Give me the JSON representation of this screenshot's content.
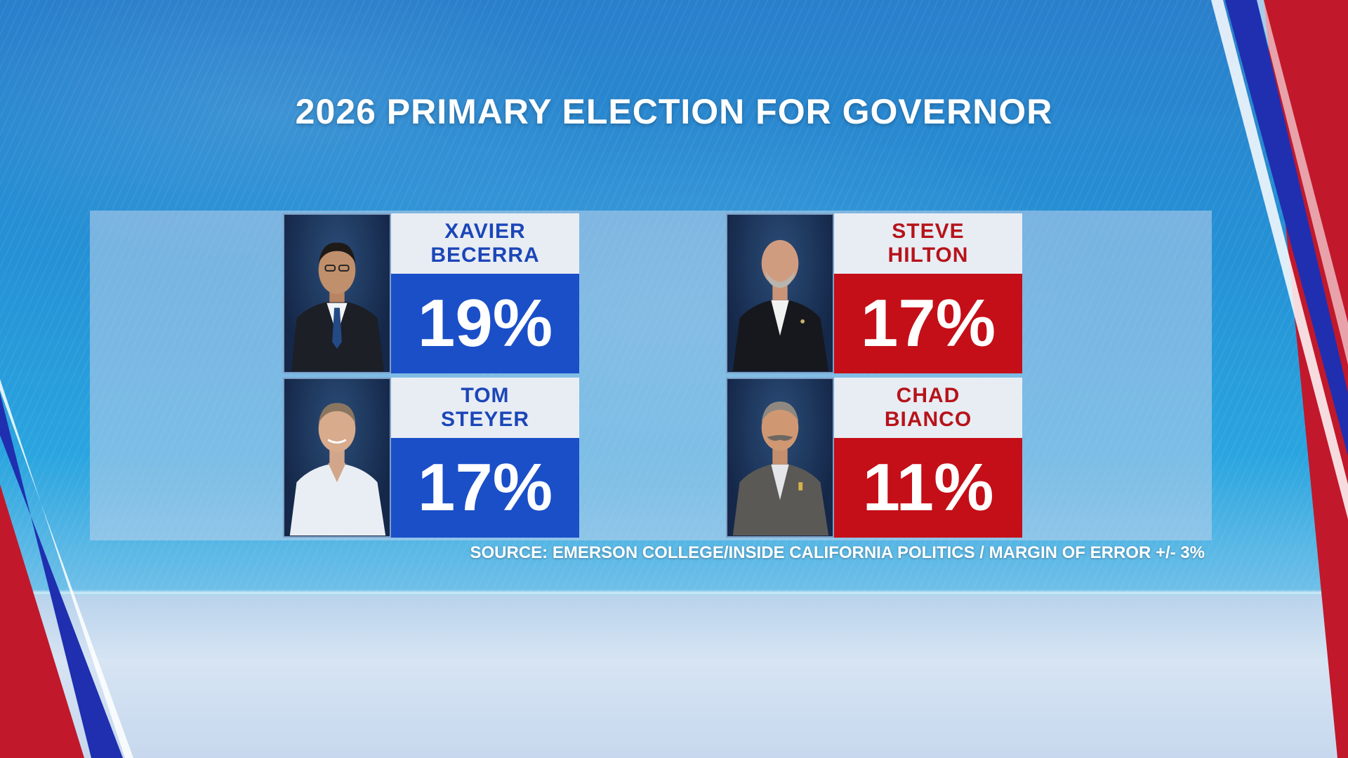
{
  "graphic": {
    "title": "2026 PRIMARY ELECTION FOR GOVERNOR",
    "source": "SOURCE: EMERSON COLLEGE/INSIDE CALIFORNIA POLITICS / MARGIN OF ERROR +/- 3%"
  },
  "candidates": [
    {
      "name": "XAVIER\nBECERRA",
      "percent": "19%",
      "party_color": "#1a4fc8",
      "photo": "candidate-photo-becerra"
    },
    {
      "name": "TOM\nSTEYER",
      "percent": "17%",
      "party_color": "#1a4fc8",
      "photo": "candidate-photo-steyer"
    },
    {
      "name": "STEVE\nHILTON",
      "percent": "17%",
      "party_color": "#c40f18",
      "photo": "candidate-photo-hilton"
    },
    {
      "name": "CHAD\nBIANCO",
      "percent": "11%",
      "party_color": "#c40f18",
      "photo": "candidate-photo-bianco"
    }
  ]
}
